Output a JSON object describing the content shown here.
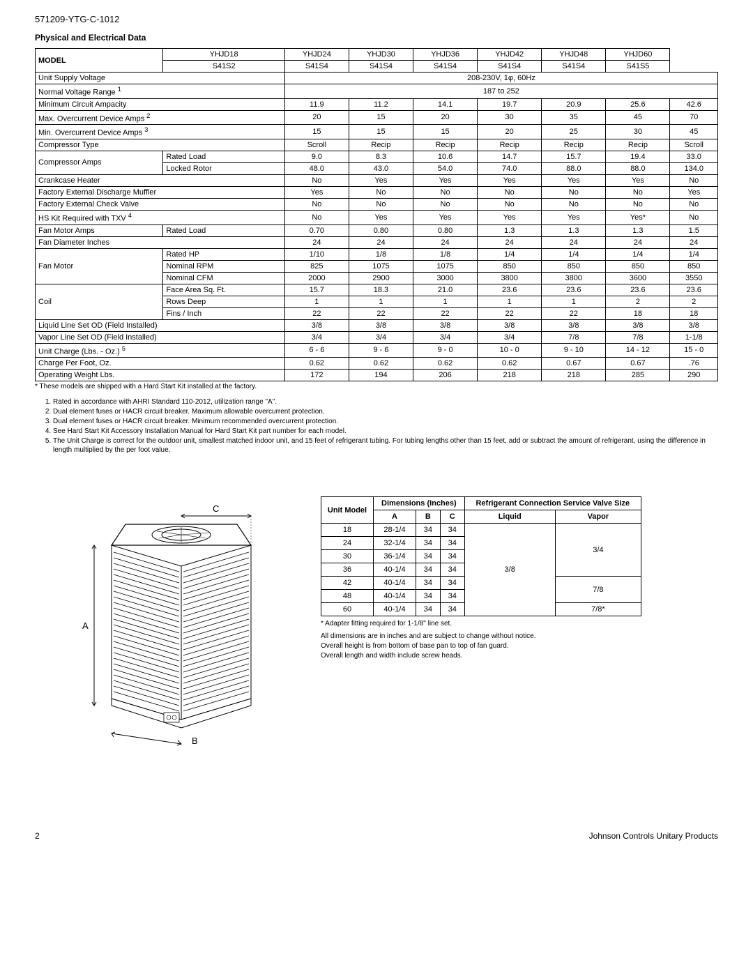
{
  "doc_code": "571209-YTG-C-1012",
  "section_title": "Physical and Electrical Data",
  "t1": {
    "model_label": "MODEL",
    "cols": [
      {
        "top": "YHJD18",
        "bot": "S41S2"
      },
      {
        "top": "YHJD24",
        "bot": "S41S4"
      },
      {
        "top": "YHJD30",
        "bot": "S41S4"
      },
      {
        "top": "YHJD36",
        "bot": "S41S4"
      },
      {
        "top": "YHJD42",
        "bot": "S41S4"
      },
      {
        "top": "YHJD48",
        "bot": "S41S4"
      },
      {
        "top": "YHJD60",
        "bot": "S41S5"
      }
    ],
    "rows": [
      {
        "label": "Unit Supply Voltage",
        "span": true,
        "spantext": "208-230V, 1φ, 60Hz"
      },
      {
        "label": "Normal Voltage Range ",
        "sup": "1",
        "span": true,
        "spantext": "187 to 252"
      },
      {
        "label": "Minimum Circuit Ampacity",
        "v": [
          "11.9",
          "11.2",
          "14.1",
          "19.7",
          "20.9",
          "25.6",
          "42.6"
        ]
      },
      {
        "label": "Max. Overcurrent Device Amps ",
        "sup": "2",
        "v": [
          "20",
          "15",
          "20",
          "30",
          "35",
          "45",
          "70"
        ]
      },
      {
        "label": "Min. Overcurrent Device Amps ",
        "sup": "3",
        "v": [
          "15",
          "15",
          "15",
          "20",
          "25",
          "30",
          "45"
        ]
      },
      {
        "label": "Compressor Type",
        "v": [
          "Scroll",
          "Recip",
          "Recip",
          "Recip",
          "Recip",
          "Recip",
          "Scroll"
        ]
      },
      {
        "group": "Compressor Amps",
        "label": "Rated Load",
        "v": [
          "9.0",
          "8.3",
          "10.6",
          "14.7",
          "15.7",
          "19.4",
          "33.0"
        ]
      },
      {
        "groupcont": true,
        "label": "Locked Rotor",
        "v": [
          "48.0",
          "43.0",
          "54.0",
          "74.0",
          "88.0",
          "88.0",
          "134.0"
        ]
      },
      {
        "label": "Crankcase Heater",
        "v": [
          "No",
          "Yes",
          "Yes",
          "Yes",
          "Yes",
          "Yes",
          "No"
        ]
      },
      {
        "label": "Factory External Discharge Muffler",
        "v": [
          "Yes",
          "No",
          "No",
          "No",
          "No",
          "No",
          "Yes"
        ]
      },
      {
        "label": "Factory External Check Valve",
        "v": [
          "No",
          "No",
          "No",
          "No",
          "No",
          "No",
          "No"
        ]
      },
      {
        "label": "HS Kit Required with TXV ",
        "sup": "4",
        "v": [
          "No",
          "Yes",
          "Yes",
          "Yes",
          "Yes",
          "Yes*",
          "No"
        ]
      },
      {
        "group": "Fan Motor Amps",
        "groupcols": 1,
        "label": "Rated Load",
        "v": [
          "0.70",
          "0.80",
          "0.80",
          "1.3",
          "1.3",
          "1.3",
          "1.5"
        ]
      },
      {
        "label": "Fan Diameter Inches",
        "v": [
          "24",
          "24",
          "24",
          "24",
          "24",
          "24",
          "24"
        ]
      },
      {
        "group": "Fan Motor",
        "label": "Rated HP",
        "v": [
          "1/10",
          "1/8",
          "1/8",
          "1/4",
          "1/4",
          "1/4",
          "1/4"
        ]
      },
      {
        "groupcont": true,
        "label": "Nominal RPM",
        "v": [
          "825",
          "1075",
          "1075",
          "850",
          "850",
          "850",
          "850"
        ]
      },
      {
        "groupcont": true,
        "label": "Nominal CFM",
        "v": [
          "2000",
          "2900",
          "3000",
          "3800",
          "3800",
          "3600",
          "3550"
        ]
      },
      {
        "group": "Coil",
        "label": "Face Area Sq. Ft.",
        "v": [
          "15.7",
          "18.3",
          "21.0",
          "23.6",
          "23.6",
          "23.6",
          "23.6"
        ]
      },
      {
        "groupcont": true,
        "label": "Rows Deep",
        "v": [
          "1",
          "1",
          "1",
          "1",
          "1",
          "2",
          "2"
        ]
      },
      {
        "groupcont": true,
        "label": "Fins / Inch",
        "v": [
          "22",
          "22",
          "22",
          "22",
          "22",
          "18",
          "18"
        ]
      },
      {
        "label": "Liquid Line Set OD (Field Installed)",
        "v": [
          "3/8",
          "3/8",
          "3/8",
          "3/8",
          "3/8",
          "3/8",
          "3/8"
        ]
      },
      {
        "label": "Vapor Line Set OD (Field Installed)",
        "v": [
          "3/4",
          "3/4",
          "3/4",
          "3/4",
          "7/8",
          "7/8",
          "1-1/8"
        ]
      },
      {
        "label": "Unit Charge (Lbs. - Oz.) ",
        "sup": "5",
        "v": [
          "6 - 6",
          "9 - 6",
          "9 - 0",
          "10 - 0",
          "9 - 10",
          "14 - 12",
          "15 - 0"
        ]
      },
      {
        "label": "Charge Per Foot, Oz.",
        "v": [
          "0.62",
          "0.62",
          "0.62",
          "0.62",
          "0.67",
          "0.67",
          ".76"
        ]
      },
      {
        "label": "Operating Weight Lbs.",
        "v": [
          "172",
          "194",
          "206",
          "218",
          "218",
          "285",
          "290"
        ]
      }
    ],
    "star_note": "* These models are shipped with a Hard Start Kit installed at the factory.",
    "footnotes": [
      "Rated in accordance with AHRI Standard 110-2012, utilization range \"A\".",
      "Dual element fuses or HACR circuit breaker. Maximum allowable overcurrent protection.",
      "Dual element fuses or HACR circuit breaker. Minimum recommended overcurrent protection.",
      "See Hard Start Kit Accessory Installation Manual for Hard Start Kit part number for each model.",
      "The Unit Charge is correct for the outdoor unit, smallest matched indoor unit, and 15 feet of refrigerant tubing. For tubing lengths other than 15 feet, add or subtract the amount of refrigerant, using the difference in length multiplied by the per foot value."
    ]
  },
  "diagram": {
    "labels": {
      "A": "A",
      "B": "B",
      "C": "C"
    }
  },
  "t2": {
    "h_unit": "Unit Model",
    "h_dim": "Dimensions (Inches)",
    "h_ref": "Refrigerant Connection Service Valve Size",
    "h_a": "A",
    "h_b": "B",
    "h_c": "C",
    "h_liq": "Liquid",
    "h_vap": "Vapor",
    "rows": [
      {
        "m": "18",
        "a": "28-1/4",
        "b": "34",
        "c": "34"
      },
      {
        "m": "24",
        "a": "32-1/4",
        "b": "34",
        "c": "34"
      },
      {
        "m": "30",
        "a": "36-1/4",
        "b": "34",
        "c": "34"
      },
      {
        "m": "36",
        "a": "40-1/4",
        "b": "34",
        "c": "34"
      },
      {
        "m": "42",
        "a": "40-1/4",
        "b": "34",
        "c": "34"
      },
      {
        "m": "48",
        "a": "40-1/4",
        "b": "34",
        "c": "34"
      },
      {
        "m": "60",
        "a": "40-1/4",
        "b": "34",
        "c": "34"
      }
    ],
    "liquid": "3/8",
    "vapor": [
      "3/4",
      "7/8",
      "7/8*"
    ],
    "star": "* Adapter fitting required for 1-1/8\" line set.",
    "notes": [
      "All dimensions are in inches and are subject to change without notice.",
      "Overall height is from bottom of base pan to top of fan guard.",
      "Overall length and width include screw heads."
    ]
  },
  "footer": {
    "page": "2",
    "right": "Johnson Controls Unitary Products"
  }
}
